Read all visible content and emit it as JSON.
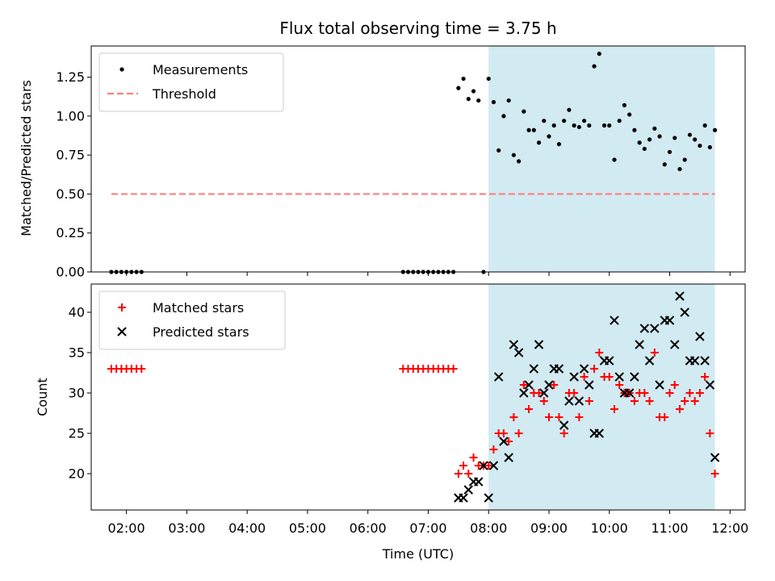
{
  "chart_data": {
    "title": "Flux total observing time = 3.75 h",
    "xlabel": "Time (UTC)",
    "x_ticks": [
      "02:00",
      "03:00",
      "04:00",
      "05:00",
      "06:00",
      "07:00",
      "08:00",
      "09:00",
      "10:00",
      "11:00",
      "12:00"
    ],
    "x_range": [
      "01:25",
      "12:15"
    ],
    "highlight_span": {
      "start": "08:00",
      "end": "11:45",
      "color": "#add8e6"
    },
    "panels": [
      {
        "type": "scatter",
        "ylabel": "Matched/Predicted stars",
        "ylim": [
          0.0,
          1.45
        ],
        "y_ticks": [
          0.0,
          0.25,
          0.5,
          0.75,
          1.0,
          1.25
        ],
        "y_tick_labels": [
          "0.00",
          "0.25",
          "0.50",
          "0.75",
          "1.00",
          "1.25"
        ],
        "legend_position": "upper-left",
        "series": [
          {
            "name": "Measurements",
            "kind": "scatter",
            "marker": "dot",
            "color": "#000000",
            "points": [
              [
                "01:45",
                0.0
              ],
              [
                "01:50",
                0.0
              ],
              [
                "01:55",
                0.0
              ],
              [
                "02:00",
                0.0
              ],
              [
                "02:05",
                0.0
              ],
              [
                "02:10",
                0.0
              ],
              [
                "02:15",
                0.0
              ],
              [
                "06:35",
                0.0
              ],
              [
                "06:40",
                0.0
              ],
              [
                "06:45",
                0.0
              ],
              [
                "06:50",
                0.0
              ],
              [
                "06:55",
                0.0
              ],
              [
                "07:00",
                0.0
              ],
              [
                "07:05",
                0.0
              ],
              [
                "07:10",
                0.0
              ],
              [
                "07:15",
                0.0
              ],
              [
                "07:20",
                0.0
              ],
              [
                "07:25",
                0.0
              ],
              [
                "07:30",
                1.18
              ],
              [
                "07:35",
                1.24
              ],
              [
                "07:40",
                1.11
              ],
              [
                "07:45",
                1.16
              ],
              [
                "07:50",
                1.1
              ],
              [
                "07:55",
                0.0
              ],
              [
                "08:00",
                1.24
              ],
              [
                "08:05",
                1.09
              ],
              [
                "08:10",
                0.78
              ],
              [
                "08:15",
                1.0
              ],
              [
                "08:20",
                1.1
              ],
              [
                "08:25",
                0.75
              ],
              [
                "08:30",
                0.71
              ],
              [
                "08:35",
                1.03
              ],
              [
                "08:40",
                0.91
              ],
              [
                "08:45",
                0.91
              ],
              [
                "08:50",
                0.83
              ],
              [
                "08:55",
                0.97
              ],
              [
                "09:00",
                0.87
              ],
              [
                "09:05",
                0.94
              ],
              [
                "09:10",
                0.82
              ],
              [
                "09:15",
                0.97
              ],
              [
                "09:20",
                1.04
              ],
              [
                "09:25",
                0.94
              ],
              [
                "09:30",
                0.93
              ],
              [
                "09:35",
                0.97
              ],
              [
                "09:40",
                0.94
              ],
              [
                "09:45",
                1.32
              ],
              [
                "09:50",
                1.4
              ],
              [
                "09:55",
                0.94
              ],
              [
                "10:00",
                0.94
              ],
              [
                "10:05",
                0.72
              ],
              [
                "10:10",
                0.97
              ],
              [
                "10:15",
                1.07
              ],
              [
                "10:20",
                1.01
              ],
              [
                "10:25",
                0.91
              ],
              [
                "10:30",
                0.83
              ],
              [
                "10:35",
                0.79
              ],
              [
                "10:40",
                0.85
              ],
              [
                "10:45",
                0.92
              ],
              [
                "10:50",
                0.87
              ],
              [
                "10:55",
                0.69
              ],
              [
                "11:00",
                0.77
              ],
              [
                "11:05",
                0.86
              ],
              [
                "11:10",
                0.66
              ],
              [
                "11:15",
                0.72
              ],
              [
                "11:20",
                0.88
              ],
              [
                "11:25",
                0.85
              ],
              [
                "11:30",
                0.81
              ],
              [
                "11:35",
                0.94
              ],
              [
                "11:40",
                0.8
              ],
              [
                "11:45",
                0.91
              ]
            ]
          },
          {
            "name": "Threshold",
            "kind": "dashed-line",
            "color": "#ff7f7f",
            "points": [
              [
                "01:45",
                0.5
              ],
              [
                "11:45",
                0.5
              ]
            ]
          }
        ]
      },
      {
        "type": "scatter",
        "ylabel": "Count",
        "ylim": [
          15.5,
          43.5
        ],
        "y_ticks": [
          20,
          25,
          30,
          35,
          40
        ],
        "y_tick_labels": [
          "20",
          "25",
          "30",
          "35",
          "40"
        ],
        "legend_position": "upper-left",
        "series": [
          {
            "name": "Matched stars",
            "kind": "scatter",
            "marker": "plus",
            "color": "#ff0000",
            "points": [
              [
                "01:45",
                33
              ],
              [
                "01:50",
                33
              ],
              [
                "01:55",
                33
              ],
              [
                "02:00",
                33
              ],
              [
                "02:05",
                33
              ],
              [
                "02:10",
                33
              ],
              [
                "02:15",
                33
              ],
              [
                "06:35",
                33
              ],
              [
                "06:40",
                33
              ],
              [
                "06:45",
                33
              ],
              [
                "06:50",
                33
              ],
              [
                "06:55",
                33
              ],
              [
                "07:00",
                33
              ],
              [
                "07:05",
                33
              ],
              [
                "07:10",
                33
              ],
              [
                "07:15",
                33
              ],
              [
                "07:20",
                33
              ],
              [
                "07:25",
                33
              ],
              [
                "07:30",
                20
              ],
              [
                "07:35",
                21
              ],
              [
                "07:40",
                20
              ],
              [
                "07:45",
                22
              ],
              [
                "07:50",
                21
              ],
              [
                "07:55",
                21
              ],
              [
                "08:00",
                21
              ],
              [
                "08:05",
                23
              ],
              [
                "08:10",
                25
              ],
              [
                "08:15",
                25
              ],
              [
                "08:20",
                24
              ],
              [
                "08:25",
                27
              ],
              [
                "08:30",
                25
              ],
              [
                "08:35",
                31
              ],
              [
                "08:40",
                28
              ],
              [
                "08:45",
                30
              ],
              [
                "08:50",
                30
              ],
              [
                "08:55",
                29
              ],
              [
                "09:00",
                27
              ],
              [
                "09:05",
                31
              ],
              [
                "09:10",
                27
              ],
              [
                "09:15",
                25
              ],
              [
                "09:20",
                30
              ],
              [
                "09:25",
                30
              ],
              [
                "09:30",
                27
              ],
              [
                "09:35",
                32
              ],
              [
                "09:40",
                29
              ],
              [
                "09:45",
                33
              ],
              [
                "09:50",
                35
              ],
              [
                "09:55",
                32
              ],
              [
                "10:00",
                32
              ],
              [
                "10:05",
                28
              ],
              [
                "10:10",
                31
              ],
              [
                "10:15",
                30
              ],
              [
                "10:20",
                30
              ],
              [
                "10:25",
                29
              ],
              [
                "10:30",
                30
              ],
              [
                "10:35",
                30
              ],
              [
                "10:40",
                29
              ],
              [
                "10:45",
                35
              ],
              [
                "10:50",
                27
              ],
              [
                "10:55",
                27
              ],
              [
                "11:00",
                30
              ],
              [
                "11:05",
                31
              ],
              [
                "11:10",
                28
              ],
              [
                "11:15",
                29
              ],
              [
                "11:20",
                30
              ],
              [
                "11:25",
                29
              ],
              [
                "11:30",
                30
              ],
              [
                "11:35",
                32
              ],
              [
                "11:40",
                25
              ],
              [
                "11:45",
                20
              ]
            ]
          },
          {
            "name": "Predicted stars",
            "kind": "scatter",
            "marker": "x",
            "color": "#000000",
            "points": [
              [
                "07:30",
                17
              ],
              [
                "07:35",
                17
              ],
              [
                "07:40",
                18
              ],
              [
                "07:45",
                19
              ],
              [
                "07:50",
                19
              ],
              [
                "07:55",
                21
              ],
              [
                "08:00",
                17
              ],
              [
                "08:05",
                21
              ],
              [
                "08:10",
                32
              ],
              [
                "08:15",
                24
              ],
              [
                "08:20",
                22
              ],
              [
                "08:25",
                36
              ],
              [
                "08:30",
                35
              ],
              [
                "08:35",
                30
              ],
              [
                "08:40",
                31
              ],
              [
                "08:45",
                33
              ],
              [
                "08:50",
                36
              ],
              [
                "08:55",
                30
              ],
              [
                "09:00",
                31
              ],
              [
                "09:05",
                33
              ],
              [
                "09:10",
                33
              ],
              [
                "09:15",
                26
              ],
              [
                "09:20",
                29
              ],
              [
                "09:25",
                32
              ],
              [
                "09:30",
                29
              ],
              [
                "09:35",
                33
              ],
              [
                "09:40",
                31
              ],
              [
                "09:45",
                25
              ],
              [
                "09:50",
                25
              ],
              [
                "09:55",
                34
              ],
              [
                "10:00",
                34
              ],
              [
                "10:05",
                39
              ],
              [
                "10:10",
                32
              ],
              [
                "10:15",
                30
              ],
              [
                "10:20",
                30
              ],
              [
                "10:25",
                32
              ],
              [
                "10:30",
                36
              ],
              [
                "10:35",
                38
              ],
              [
                "10:40",
                34
              ],
              [
                "10:45",
                38
              ],
              [
                "10:50",
                31
              ],
              [
                "10:55",
                39
              ],
              [
                "11:00",
                39
              ],
              [
                "11:05",
                36
              ],
              [
                "11:10",
                42
              ],
              [
                "11:15",
                40
              ],
              [
                "11:20",
                34
              ],
              [
                "11:25",
                34
              ],
              [
                "11:30",
                37
              ],
              [
                "11:35",
                34
              ],
              [
                "11:40",
                31
              ],
              [
                "11:45",
                22
              ]
            ]
          }
        ]
      }
    ]
  }
}
